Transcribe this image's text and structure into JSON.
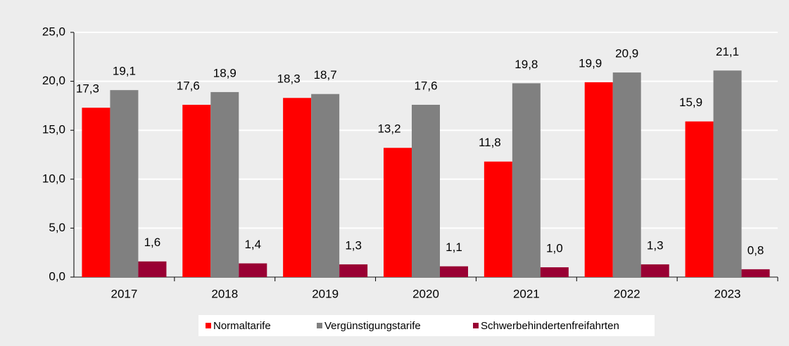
{
  "chart_data": {
    "type": "bar",
    "categories": [
      "2017",
      "2018",
      "2019",
      "2020",
      "2021",
      "2022",
      "2023"
    ],
    "series": [
      {
        "name": "Normaltarife",
        "color": "#ff0000",
        "values": [
          17.3,
          17.6,
          18.3,
          13.2,
          11.8,
          19.9,
          15.9
        ],
        "value_labels": [
          "17,3",
          "17,6",
          "18,3",
          "13,2",
          "11,8",
          "19,9",
          "15,9"
        ]
      },
      {
        "name": "Vergünstigungstarife",
        "color": "#808080",
        "values": [
          19.1,
          18.9,
          18.7,
          17.6,
          19.8,
          20.9,
          21.1
        ],
        "value_labels": [
          "19,1",
          "18,9",
          "18,7",
          "17,6",
          "19,8",
          "20,9",
          "21,1"
        ]
      },
      {
        "name": "Schwerbehindertenfreifahrten",
        "color": "#990033",
        "values": [
          1.6,
          1.4,
          1.3,
          1.1,
          1.0,
          1.3,
          0.8
        ],
        "value_labels": [
          "1,6",
          "1,4",
          "1,3",
          "1,1",
          "1,0",
          "1,3",
          "0,8"
        ]
      }
    ],
    "ylim": [
      0,
      25
    ],
    "yticks": [
      {
        "value": 0,
        "label": "0,0"
      },
      {
        "value": 5,
        "label": "5,0"
      },
      {
        "value": 10,
        "label": "10,0"
      },
      {
        "value": 15,
        "label": "15,0"
      },
      {
        "value": 20,
        "label": "20,0"
      },
      {
        "value": 25,
        "label": "25,0"
      }
    ],
    "grid": true,
    "legend": "bottom"
  }
}
